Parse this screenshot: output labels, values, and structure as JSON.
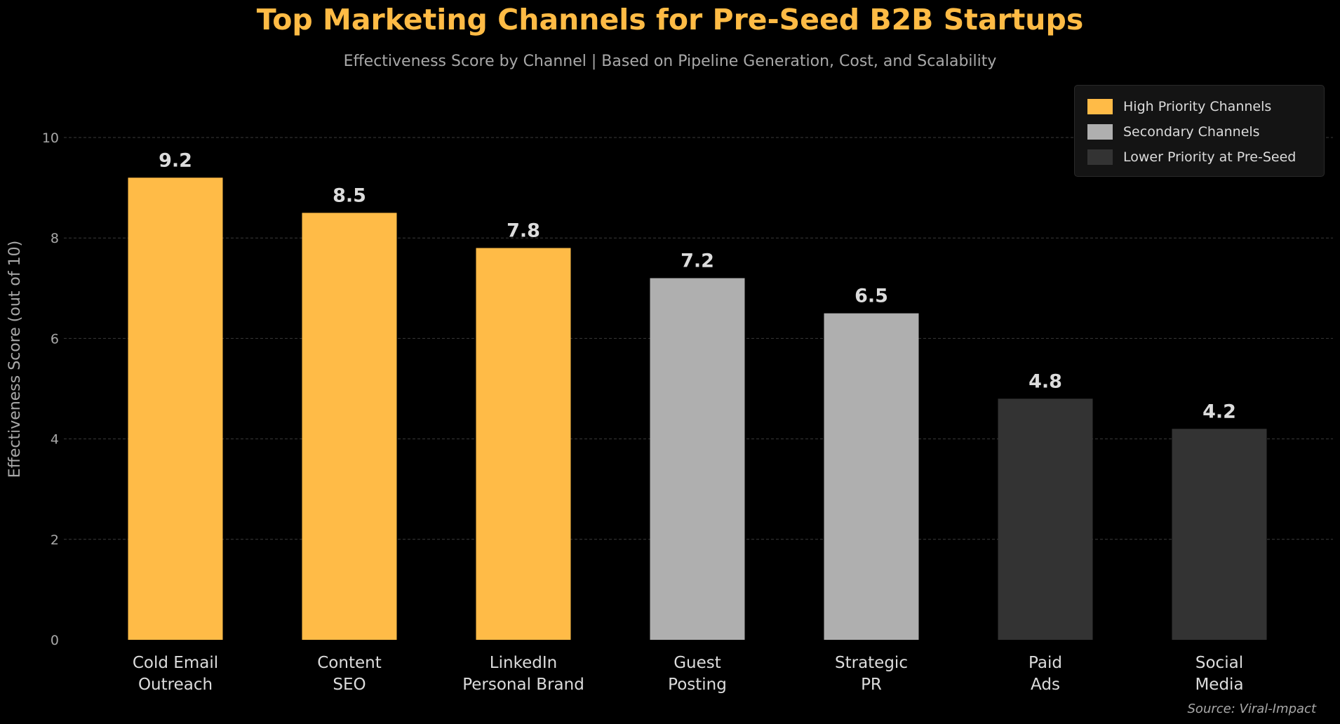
{
  "chart_data": {
    "type": "bar",
    "title": "Top Marketing Channels for Pre-Seed B2B Startups",
    "subtitle": "Effectiveness Score by Channel  |  Based on Pipeline Generation, Cost, and Scalability",
    "xlabel": "",
    "ylabel": "Effectiveness Score  (out of 10)",
    "ylim": [
      0,
      11
    ],
    "yticks": [
      0,
      2,
      4,
      6,
      8,
      10
    ],
    "grid": true,
    "legend_position": "top-right",
    "categories": [
      [
        "Cold Email",
        "Outreach"
      ],
      [
        "Content",
        "SEO"
      ],
      [
        "LinkedIn",
        "Personal Brand"
      ],
      [
        "Guest",
        "Posting"
      ],
      [
        "Strategic",
        "PR"
      ],
      [
        "Paid",
        "Ads"
      ],
      [
        "Social",
        "Media"
      ]
    ],
    "values": [
      9.2,
      8.5,
      7.8,
      7.2,
      6.5,
      4.8,
      4.2
    ],
    "value_labels": [
      "9.2",
      "8.5",
      "7.8",
      "7.2",
      "6.5",
      "4.8",
      "4.2"
    ],
    "groups": [
      0,
      0,
      0,
      1,
      1,
      2,
      2
    ],
    "legend": [
      {
        "label": "High Priority Channels",
        "color": "#FFBB47"
      },
      {
        "label": "Secondary Channels",
        "color": "#AFAFAF"
      },
      {
        "label": "Lower Priority at Pre-Seed",
        "color": "#333333"
      }
    ],
    "source": "Source: Viral-Impact"
  }
}
